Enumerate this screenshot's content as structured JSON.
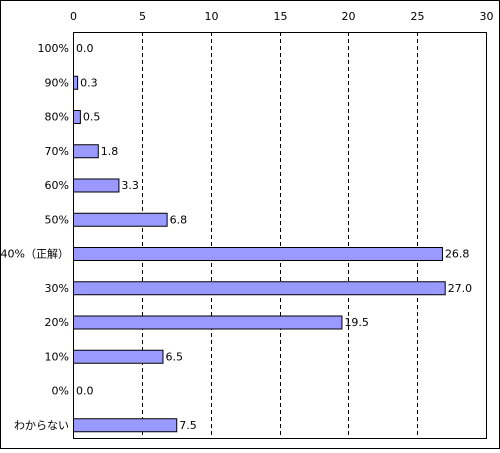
{
  "chart_data": {
    "type": "bar",
    "orientation": "horizontal",
    "categories": [
      "100%",
      "90%",
      "80%",
      "70%",
      "60%",
      "50%",
      "40%（正解）",
      "30%",
      "20%",
      "10%",
      "0%",
      "わからない"
    ],
    "values": [
      0.0,
      0.3,
      0.5,
      1.8,
      3.3,
      6.8,
      26.8,
      27.0,
      19.5,
      6.5,
      0.0,
      7.5
    ],
    "data_labels": [
      "0.0",
      "0.3",
      "0.5",
      "1.8",
      "3.3",
      "6.8",
      "26.8",
      "27.0",
      "19.5",
      "6.5",
      "0.0",
      "7.5"
    ],
    "x_ticks": [
      "0",
      "5",
      "10",
      "15",
      "20",
      "25",
      "30"
    ],
    "xlim": [
      0,
      30
    ],
    "x_axis_position": "top",
    "grid": "vertical dashed",
    "legend": "none",
    "title": "",
    "xlabel": "",
    "ylabel": "",
    "colors": {
      "bar_fill": "#9999ff",
      "bar_stroke": "#000000",
      "grid": "#000000",
      "frame": "#000000",
      "background": "#ffffff"
    }
  }
}
